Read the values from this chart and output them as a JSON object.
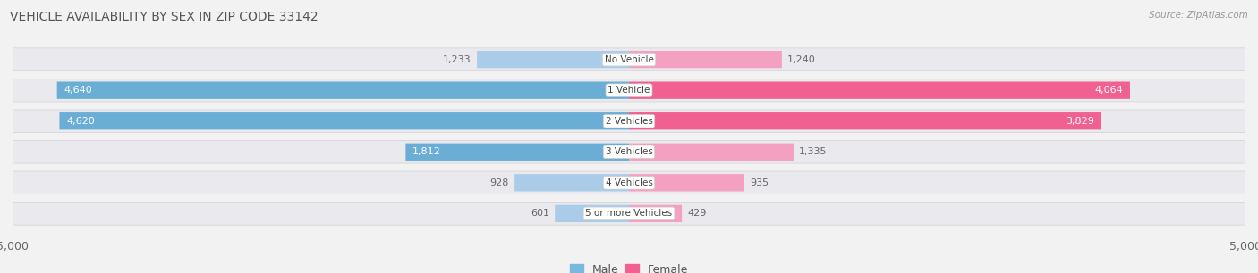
{
  "title": "VEHICLE AVAILABILITY BY SEX IN ZIP CODE 33142",
  "source": "Source: ZipAtlas.com",
  "categories": [
    "No Vehicle",
    "1 Vehicle",
    "2 Vehicles",
    "3 Vehicles",
    "4 Vehicles",
    "5 or more Vehicles"
  ],
  "male_values": [
    1233,
    4640,
    4620,
    1812,
    928,
    601
  ],
  "female_values": [
    1240,
    4064,
    3829,
    1335,
    935,
    429
  ],
  "max_val": 5000,
  "male_color_large": "#6aaed6",
  "male_color_small": "#aacce8",
  "female_color_large": "#f06090",
  "female_color_small": "#f4a0c0",
  "bg_color": "#f2f2f2",
  "row_bg_color": "#e4e4e8",
  "row_bg_inner": "#ebebef",
  "title_color": "#555555",
  "source_color": "#999999",
  "label_white": "#ffffff",
  "label_gray": "#777777",
  "legend_male_color": "#7ab8de",
  "legend_female_color": "#f06090",
  "large_threshold": 1500
}
